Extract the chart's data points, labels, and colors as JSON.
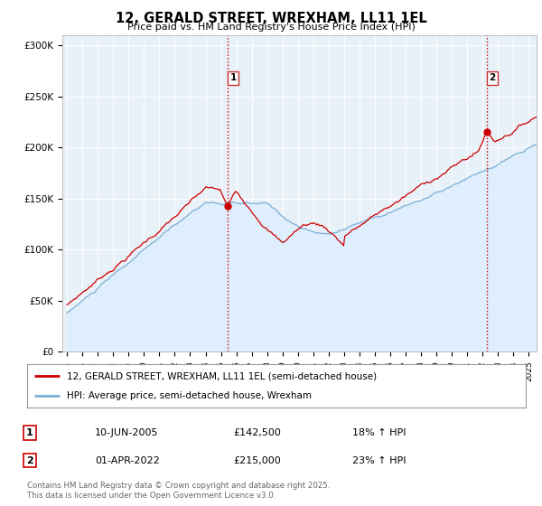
{
  "title": "12, GERALD STREET, WREXHAM, LL11 1EL",
  "subtitle": "Price paid vs. HM Land Registry's House Price Index (HPI)",
  "ylabel_ticks": [
    "£0",
    "£50K",
    "£100K",
    "£150K",
    "£200K",
    "£250K",
    "£300K"
  ],
  "ytick_values": [
    0,
    50000,
    100000,
    150000,
    200000,
    250000,
    300000
  ],
  "ylim": [
    0,
    310000
  ],
  "xlim_start": 1994.7,
  "xlim_end": 2025.5,
  "property_color": "#cc0000",
  "hpi_color": "#7ab0d4",
  "hpi_fill_color": "#ddeeff",
  "vline_color": "#cc0000",
  "marker1_x": 2005.44,
  "marker1_y": 142500,
  "marker2_x": 2022.25,
  "marker2_y": 215000,
  "legend_property": "12, GERALD STREET, WREXHAM, LL11 1EL (semi-detached house)",
  "legend_hpi": "HPI: Average price, semi-detached house, Wrexham",
  "table_row1": [
    "1",
    "10-JUN-2005",
    "£142,500",
    "18% ↑ HPI"
  ],
  "table_row2": [
    "2",
    "01-APR-2022",
    "£215,000",
    "23% ↑ HPI"
  ],
  "footer": "Contains HM Land Registry data © Crown copyright and database right 2025.\nThis data is licensed under the Open Government Licence v3.0.",
  "bg_color": "#ffffff",
  "grid_color": "#cccccc"
}
